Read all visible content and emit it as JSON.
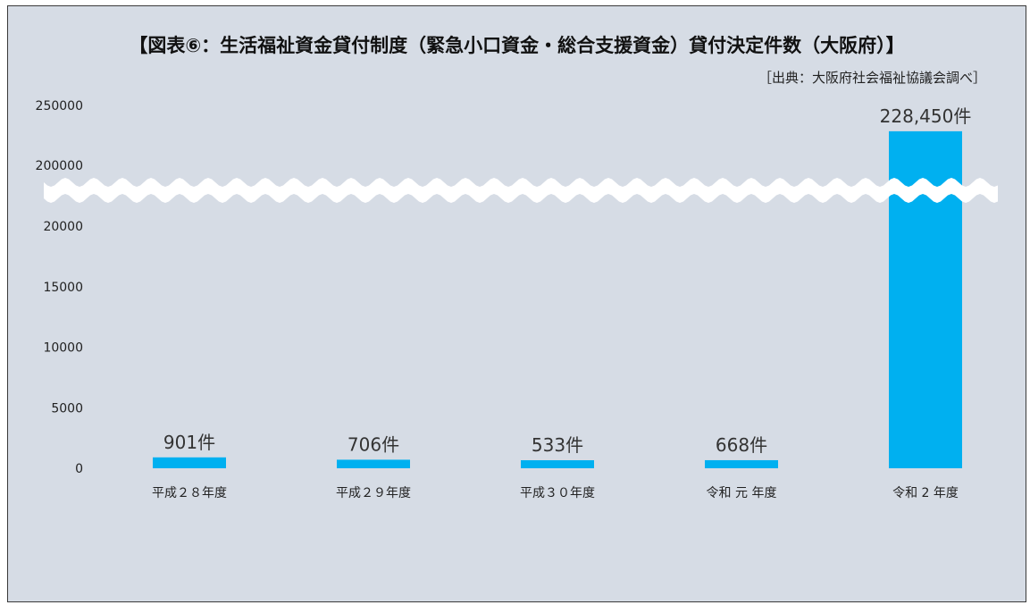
{
  "chart_data": {
    "type": "bar",
    "title": "【図表⑥：生活福祉資金貸付制度（緊急小口資金・総合支援資金）貸付決定件数（大阪府）】",
    "source": "［出典：大阪府社会福祉協議会調べ］",
    "xlabel": "",
    "ylabel": "",
    "categories": [
      "平成２８年度",
      "平成２９年度",
      "平成３０年度",
      "令和 元 年度",
      "令和 2 年度"
    ],
    "values": [
      901,
      706,
      533,
      668,
      228450
    ],
    "data_labels": [
      "901件",
      "706件",
      "533件",
      "668件",
      "228,450件"
    ],
    "y_ticks_lower": [
      0,
      5000,
      10000,
      15000,
      20000
    ],
    "y_ticks_upper": [
      200000,
      250000
    ],
    "y_ticks_lower_labels": [
      "0",
      "5000",
      "10000",
      "15000",
      "20000"
    ],
    "y_ticks_upper_labels": [
      "200000",
      "250000"
    ],
    "ylim_lower": [
      0,
      20000
    ],
    "ylim_upper": [
      200000,
      250000
    ],
    "axis_break": true,
    "grid": false,
    "legend": "none",
    "colors": {
      "bar": "#00b0f0",
      "background": "#d6dce5",
      "break_band": "#ffffff"
    }
  }
}
